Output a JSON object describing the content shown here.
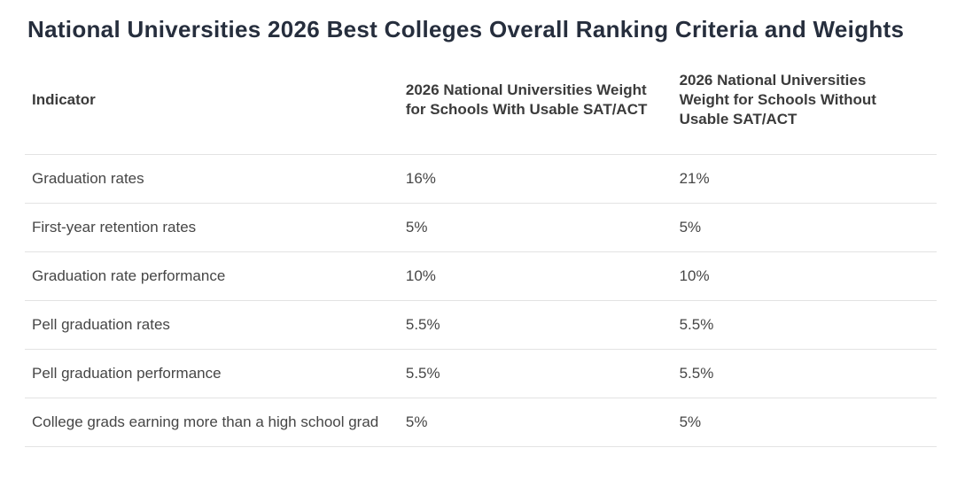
{
  "page_title": "National Universities 2026 Best Colleges Overall Ranking Criteria and Weights",
  "table": {
    "columns": [
      {
        "label": "Indicator"
      },
      {
        "label": "2026 National Universities Weight for Schools With Usable SAT/ACT"
      },
      {
        "label": "2026 National Universities Weight for Schools Without Usable SAT/ACT"
      }
    ],
    "rows": [
      {
        "indicator": "Graduation rates",
        "with_sat": "16%",
        "without_sat": "21%"
      },
      {
        "indicator": "First-year retention rates",
        "with_sat": "5%",
        "without_sat": "5%"
      },
      {
        "indicator": "Graduation rate performance",
        "with_sat": "10%",
        "without_sat": "10%"
      },
      {
        "indicator": "Pell graduation rates",
        "with_sat": "5.5%",
        "without_sat": "5.5%"
      },
      {
        "indicator": "Pell graduation performance",
        "with_sat": "5.5%",
        "without_sat": "5.5%"
      },
      {
        "indicator": "College grads earning more than a high school grad",
        "with_sat": "5%",
        "without_sat": "5%"
      }
    ]
  },
  "chart_data": {
    "type": "table",
    "title": "National Universities 2026 Best Colleges Overall Ranking Criteria and Weights",
    "categories": [
      "Graduation rates",
      "First-year retention rates",
      "Graduation rate performance",
      "Pell graduation rates",
      "Pell graduation performance",
      "College grads earning more than a high school grad"
    ],
    "series": [
      {
        "name": "2026 National Universities Weight for Schools With Usable SAT/ACT",
        "values": [
          16,
          5,
          10,
          5.5,
          5.5,
          5
        ]
      },
      {
        "name": "2026 National Universities Weight for Schools Without Usable SAT/ACT",
        "values": [
          21,
          5,
          10,
          5.5,
          5.5,
          5
        ]
      }
    ],
    "unit": "%"
  },
  "colors": {
    "title_text": "#262e3d",
    "header_text": "#3b3b3b",
    "body_text": "#464646",
    "divider": "#e3e3e3",
    "background": "#ffffff"
  }
}
